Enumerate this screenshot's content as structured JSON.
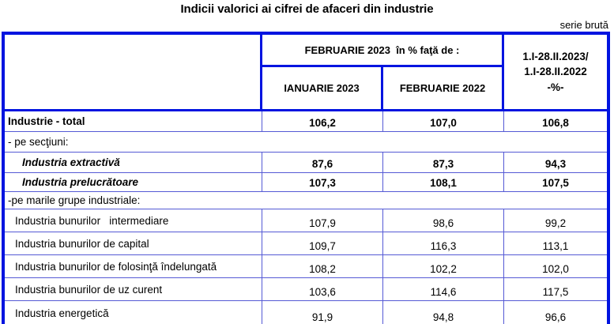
{
  "title": "Indicii valorici ai cifrei de afaceri din industrie",
  "note": "serie brută",
  "table": {
    "header": {
      "span": "FEBRUARIE 2023  în % faţă de :",
      "col1": "IANUARIE 2023",
      "col2": "FEBRUARIE 2022",
      "period_line1": "1.I-28.II.2023/",
      "period_line2": "1.I-28.II.2022",
      "period_line3": "-%-"
    },
    "rows": [
      {
        "label": "Industrie - total",
        "values": [
          "106,2",
          "107,0",
          "106,8"
        ]
      },
      {
        "label": "- pe secţiuni:",
        "values": []
      },
      {
        "label": "Industria extractivă",
        "values": [
          "87,6",
          "87,3",
          "94,3"
        ]
      },
      {
        "label": "Industria prelucrătoare",
        "values": [
          "107,3",
          "108,1",
          "107,5"
        ]
      },
      {
        "label": "-pe marile grupe industriale:",
        "values": []
      },
      {
        "label": "Industria bunurilor   intermediare",
        "values": [
          "107,9",
          "98,6",
          "99,2"
        ]
      },
      {
        "label": "Industria bunurilor de capital",
        "values": [
          "109,7",
          "116,3",
          "113,1"
        ]
      },
      {
        "label": "Industria bunurilor de folosinţă îndelungată",
        "values": [
          "108,2",
          "102,2",
          "102,0"
        ]
      },
      {
        "label": "Industria bunurilor de uz curent",
        "values": [
          "103,6",
          "114,6",
          "117,5"
        ]
      },
      {
        "label": "Industria energetică",
        "values": [
          "91,9",
          "94,8",
          "96,6"
        ]
      }
    ]
  }
}
